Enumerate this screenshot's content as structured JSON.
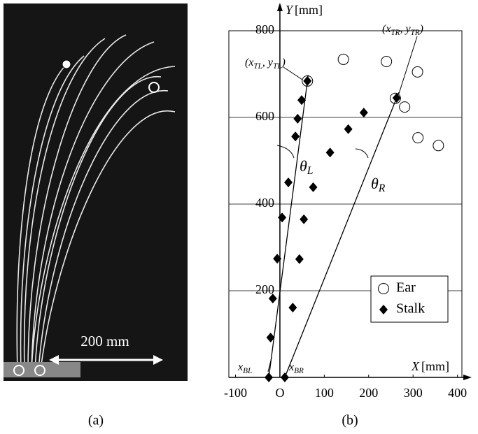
{
  "photo": {
    "scale_label": "200 mm",
    "caption": "(a)"
  },
  "chart_data": {
    "type": "scatter",
    "caption": "(b)",
    "x_label": {
      "symbol": "X",
      "unit": "[mm]"
    },
    "y_label": {
      "symbol": "Y",
      "unit": "[mm]"
    },
    "xlim": [
      -115,
      410
    ],
    "ylim": [
      0,
      800
    ],
    "xticks": [
      -100,
      {
        "value": 0,
        "label": "O"
      },
      100,
      200,
      300,
      400
    ],
    "yticks": [
      200,
      400,
      600,
      800
    ],
    "grid": true,
    "legend": "lower right",
    "series": [
      {
        "name": "Ear",
        "marker": "circle",
        "color": "#000000",
        "x": [
          143,
          240,
          310,
          281,
          311,
          357,
          62,
          260
        ],
        "y": [
          734,
          729,
          705,
          624,
          553,
          535,
          684,
          644
        ]
      },
      {
        "name": "Stalk",
        "marker": "diamond",
        "color": "#000000",
        "x": [
          -25,
          11,
          -21,
          -16,
          29,
          -6,
          44,
          5,
          54,
          19,
          75,
          113,
          154,
          189,
          35,
          40,
          49,
          62,
          263
        ],
        "y": [
          0,
          0,
          92,
          182,
          161,
          274,
          273,
          369,
          365,
          450,
          439,
          519,
          573,
          611,
          556,
          597,
          640,
          684,
          645
        ]
      }
    ],
    "annotations": [
      {
        "parts": [
          "(x",
          "TL",
          ", y",
          "TL",
          ")"
        ]
      },
      {
        "parts": [
          "(x",
          "TR",
          ", y",
          "TR",
          ")"
        ]
      },
      {
        "parts": [
          "θ",
          "L"
        ]
      },
      {
        "parts": [
          "θ",
          "R"
        ]
      },
      {
        "parts": [
          "x",
          "BL"
        ]
      },
      {
        "parts": [
          "x",
          "BR"
        ]
      }
    ]
  }
}
